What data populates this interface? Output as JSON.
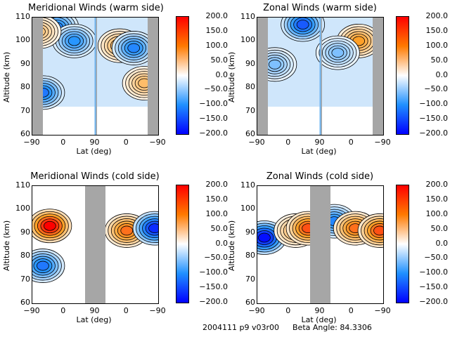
{
  "chart_data": [
    {
      "type": "heatmap",
      "title": "Meridional Winds (warm side)",
      "xlabel": "Lat (deg)",
      "ylabel": "Altitude (km)",
      "xticks": [
        "-90",
        "0",
        "90",
        "0",
        "-90"
      ],
      "yticks": [
        "60",
        "70",
        "80",
        "90",
        "100",
        "110"
      ],
      "ylim": [
        60,
        110
      ],
      "colorbar": {
        "ticks": [
          "200.0",
          "150.0",
          "100.0",
          "50.0",
          "0.0",
          "-50.0",
          "-100.0",
          "-150.0",
          "-200.0"
        ],
        "range": [
          -200,
          200
        ]
      },
      "features": [
        {
          "lat_seg": 0,
          "lat": -60,
          "alt": 78,
          "value": -120
        },
        {
          "lat_seg": 0,
          "lat": -20,
          "alt": 106,
          "value": -110
        },
        {
          "lat_seg": 0,
          "lat": 30,
          "alt": 100,
          "value": -100
        },
        {
          "lat_seg": 0,
          "lat": -70,
          "alt": 104,
          "value": 60
        },
        {
          "lat_seg": 1,
          "lat": 20,
          "alt": 98,
          "value": 80
        },
        {
          "lat_seg": 1,
          "lat": -20,
          "alt": 97,
          "value": -110
        },
        {
          "lat_seg": 1,
          "lat": -50,
          "alt": 82,
          "value": 70
        }
      ]
    },
    {
      "type": "heatmap",
      "title": "Zonal Winds (warm side)",
      "xlabel": "Lat (deg)",
      "ylabel": "Altitude (km)",
      "xticks": [
        "-90",
        "0",
        "90",
        "0",
        "-90"
      ],
      "yticks": [
        "60",
        "70",
        "80",
        "90",
        "100",
        "110"
      ],
      "ylim": [
        60,
        110
      ],
      "colorbar": {
        "ticks": [
          "200.0",
          "150.0",
          "100.0",
          "50.0",
          "0.0",
          "-50.0",
          "-100.0",
          "-150.0",
          "-200.0"
        ],
        "range": [
          -200,
          200
        ]
      },
      "features": [
        {
          "lat_seg": 0,
          "lat": 40,
          "alt": 107,
          "value": -140
        },
        {
          "lat_seg": 0,
          "lat": -40,
          "alt": 90,
          "value": -60
        },
        {
          "lat_seg": 1,
          "lat": -20,
          "alt": 100,
          "value": 100
        },
        {
          "lat_seg": 1,
          "lat": 40,
          "alt": 95,
          "value": -60
        }
      ]
    },
    {
      "type": "heatmap",
      "title": "Meridional Winds (cold side)",
      "xlabel": "Lat (deg)",
      "ylabel": "Altitude (km)",
      "xticks": [
        "-90",
        "0",
        "90",
        "0",
        "-90"
      ],
      "yticks": [
        "60",
        "70",
        "80",
        "90",
        "100",
        "110"
      ],
      "ylim": [
        60,
        110
      ],
      "colorbar": {
        "ticks": [
          "200.0",
          "150.0",
          "100.0",
          "50.0",
          "0.0",
          "-50.0",
          "-100.0",
          "-150.0",
          "-200.0"
        ],
        "range": [
          -200,
          200
        ]
      },
      "features": [
        {
          "lat_seg": 0,
          "lat": -40,
          "alt": 93,
          "value": 200
        },
        {
          "lat_seg": 0,
          "lat": -60,
          "alt": 76,
          "value": -120
        },
        {
          "lat_seg": 1,
          "lat": 0,
          "alt": 91,
          "value": 130
        },
        {
          "lat_seg": 1,
          "lat": -80,
          "alt": 92,
          "value": -170
        }
      ]
    },
    {
      "type": "heatmap",
      "title": "Zonal Winds (cold side)",
      "xlabel": "Lat (deg)",
      "ylabel": "Altitude (km)",
      "xticks": [
        "-90",
        "0",
        "90",
        "0",
        "-90"
      ],
      "yticks": [
        "60",
        "70",
        "80",
        "90",
        "100",
        "110"
      ],
      "ylim": [
        60,
        110
      ],
      "colorbar": {
        "ticks": [
          "200.0",
          "150.0",
          "100.0",
          "50.0",
          "0.0",
          "-50.0",
          "-100.0",
          "-150.0",
          "-200.0"
        ],
        "range": [
          -200,
          200
        ]
      },
      "features": [
        {
          "lat_seg": 0,
          "lat": -70,
          "alt": 88,
          "value": -190
        },
        {
          "lat_seg": 0,
          "lat": 20,
          "alt": 91,
          "value": 80
        },
        {
          "lat_seg": 0,
          "lat": 55,
          "alt": 92,
          "value": 150
        },
        {
          "lat_seg": 1,
          "lat": 50,
          "alt": 95,
          "value": -110
        },
        {
          "lat_seg": 1,
          "lat": -10,
          "alt": 92,
          "value": 130
        },
        {
          "lat_seg": 1,
          "lat": -80,
          "alt": 91,
          "value": 150
        }
      ]
    }
  ],
  "footer": {
    "id": "2004111 p9 v03r00",
    "beta": "Beta Angle: 84.3306"
  }
}
